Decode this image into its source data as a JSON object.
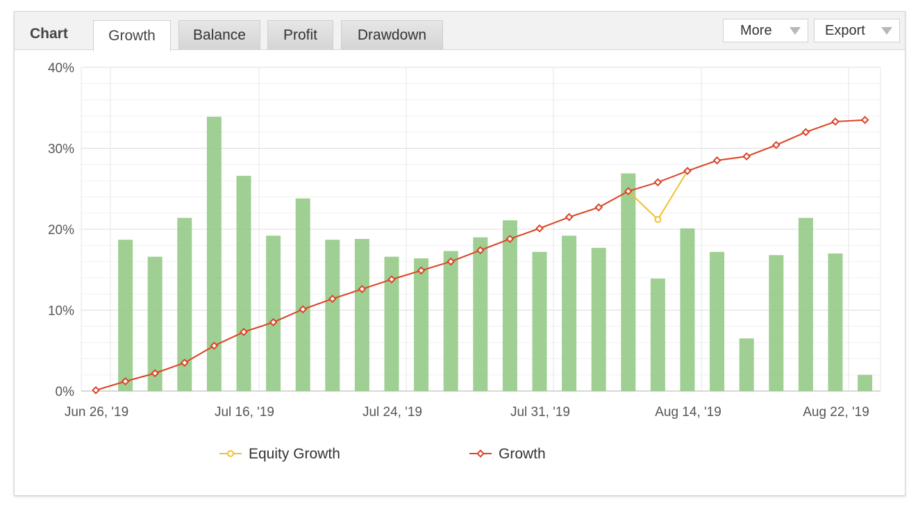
{
  "header": {
    "title": "Chart",
    "tabs": [
      {
        "label": "Growth",
        "active": true
      },
      {
        "label": "Balance",
        "active": false
      },
      {
        "label": "Profit",
        "active": false
      },
      {
        "label": "Drawdown",
        "active": false
      }
    ],
    "more_label": "More",
    "export_label": "Export"
  },
  "colors": {
    "bars": "#92c883",
    "growth": "#d9442b",
    "equity": "#f0c030"
  },
  "chart_data": {
    "type": "bar+line",
    "title": "",
    "xlabel": "",
    "ylabel": "",
    "ylim": [
      0,
      40
    ],
    "yticks": [
      "0%",
      "10%",
      "20%",
      "30%",
      "40%"
    ],
    "x_tick_labels": [
      {
        "index": 0,
        "label": "Jun 26, '19"
      },
      {
        "index": 5,
        "label": "Jul 16, '19"
      },
      {
        "index": 10,
        "label": "Jul 24, '19"
      },
      {
        "index": 15,
        "label": "Jul 31, '19"
      },
      {
        "index": 20,
        "label": "Aug 14, '19"
      },
      {
        "index": 25,
        "label": "Aug 22, '19"
      }
    ],
    "bars": [
      null,
      18.7,
      16.6,
      21.4,
      33.9,
      26.6,
      19.2,
      23.8,
      18.7,
      18.8,
      16.6,
      16.4,
      17.3,
      19.0,
      21.1,
      17.2,
      19.2,
      17.7,
      26.9,
      13.9,
      20.1,
      17.2,
      6.5,
      16.8,
      21.4,
      17.0,
      2.0
    ],
    "series": [
      {
        "name": "Equity Growth",
        "values": [
          0.1,
          1.2,
          2.2,
          3.5,
          5.6,
          7.3,
          8.5,
          10.1,
          11.4,
          12.6,
          13.8,
          14.9,
          16.0,
          17.4,
          18.8,
          20.1,
          21.5,
          22.7,
          24.7,
          21.2,
          27.2,
          28.5,
          29.0,
          30.4,
          32.0,
          33.3,
          33.5
        ]
      },
      {
        "name": "Growth",
        "values": [
          0.1,
          1.2,
          2.2,
          3.5,
          5.6,
          7.3,
          8.5,
          10.1,
          11.4,
          12.6,
          13.8,
          14.9,
          16.0,
          17.4,
          18.8,
          20.1,
          21.5,
          22.7,
          24.7,
          25.8,
          27.2,
          28.5,
          29.0,
          30.4,
          32.0,
          33.3,
          33.5
        ]
      }
    ]
  }
}
